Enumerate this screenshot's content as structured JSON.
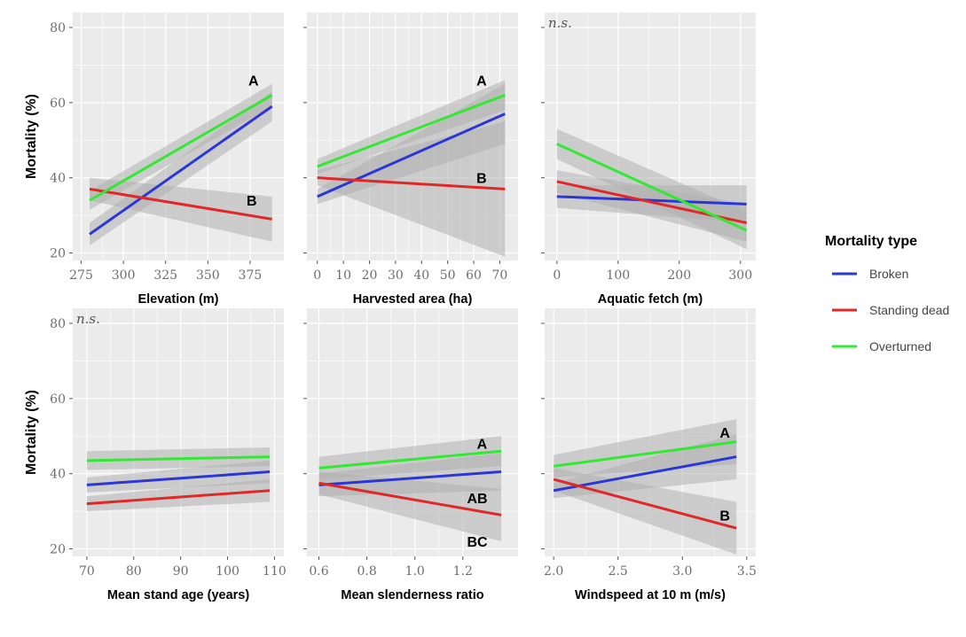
{
  "colors": {
    "panel_bg": "#ebebeb",
    "grid": "#ffffff",
    "ribbon": "#b0b0b0",
    "Broken": "#2a36d6",
    "Standing dead": "#e02828",
    "Overturned": "#33e833"
  },
  "legend": {
    "title": "Mortality type",
    "items": [
      "Broken",
      "Standing dead",
      "Overturned"
    ]
  },
  "chart_data": [
    {
      "type": "line",
      "xlabel": "Elevation (m)",
      "ylabel": "Mortality (%)",
      "xticks": [
        275,
        300,
        325,
        350,
        375
      ],
      "xlim": [
        270,
        395
      ],
      "yticks": [
        20,
        40,
        60,
        80
      ],
      "ytick_labels": [
        "20",
        "40",
        "60",
        "80"
      ],
      "ylim": [
        18,
        84
      ],
      "note": "",
      "series": [
        {
          "name": "Broken",
          "x": [
            280,
            388
          ],
          "y": [
            25,
            59
          ],
          "ci": [
            3,
            4
          ]
        },
        {
          "name": "Standing dead",
          "x": [
            280,
            388
          ],
          "y": [
            37,
            29
          ],
          "ci": [
            3,
            6
          ]
        },
        {
          "name": "Overturned",
          "x": [
            280,
            388
          ],
          "y": [
            34,
            62
          ],
          "ci": [
            2.5,
            3
          ]
        }
      ],
      "annotations": [
        {
          "text": "A",
          "x": 377,
          "y": 66
        },
        {
          "text": "B",
          "x": 376,
          "y": 34
        }
      ]
    },
    {
      "type": "line",
      "xlabel": "Harvested area (ha)",
      "ylabel": "",
      "xticks": [
        0,
        10,
        20,
        30,
        40,
        50,
        60,
        70
      ],
      "xlim": [
        -4,
        77
      ],
      "yticks": [
        20,
        40,
        60,
        80
      ],
      "ytick_labels": [
        "",
        "",
        "",
        ""
      ],
      "ylim": [
        18,
        84
      ],
      "note": "",
      "series": [
        {
          "name": "Broken",
          "x": [
            0,
            72
          ],
          "y": [
            35,
            57
          ],
          "ci": [
            2,
            8
          ]
        },
        {
          "name": "Standing dead",
          "x": [
            0,
            72
          ],
          "y": [
            40,
            37
          ],
          "ci": [
            2,
            18
          ]
        },
        {
          "name": "Overturned",
          "x": [
            0,
            72
          ],
          "y": [
            43,
            62
          ],
          "ci": [
            2,
            4
          ]
        }
      ],
      "annotations": [
        {
          "text": "A",
          "x": 63,
          "y": 66
        },
        {
          "text": "B",
          "x": 63,
          "y": 40
        }
      ]
    },
    {
      "type": "line",
      "xlabel": "Aquatic fetch (m)",
      "ylabel": "",
      "xticks": [
        0,
        100,
        200,
        300
      ],
      "xlim": [
        -20,
        325
      ],
      "yticks": [
        20,
        40,
        60,
        80
      ],
      "ytick_labels": [
        "",
        "",
        "",
        ""
      ],
      "ylim": [
        18,
        84
      ],
      "note": "n.s.",
      "series": [
        {
          "name": "Broken",
          "x": [
            0,
            310
          ],
          "y": [
            35,
            33
          ],
          "ci": [
            3,
            5
          ]
        },
        {
          "name": "Standing dead",
          "x": [
            0,
            310
          ],
          "y": [
            39,
            28
          ],
          "ci": [
            3,
            5
          ]
        },
        {
          "name": "Overturned",
          "x": [
            0,
            310
          ],
          "y": [
            49,
            26
          ],
          "ci": [
            4,
            5
          ]
        }
      ],
      "annotations": []
    },
    {
      "type": "line",
      "xlabel": "Mean stand age (years)",
      "ylabel": "Mortality  (%)",
      "xticks": [
        70,
        80,
        90,
        100,
        110
      ],
      "xlim": [
        67,
        112
      ],
      "yticks": [
        20,
        40,
        60,
        80
      ],
      "ytick_labels": [
        "20",
        "40",
        "60",
        "80"
      ],
      "ylim": [
        18,
        84
      ],
      "note": "n.s.",
      "series": [
        {
          "name": "Broken",
          "x": [
            70,
            109
          ],
          "y": [
            37,
            40.5
          ],
          "ci": [
            2,
            3
          ]
        },
        {
          "name": "Standing dead",
          "x": [
            70,
            109
          ],
          "y": [
            32,
            35.5
          ],
          "ci": [
            2,
            3
          ]
        },
        {
          "name": "Overturned",
          "x": [
            70,
            109
          ],
          "y": [
            43.5,
            44.5
          ],
          "ci": [
            2.5,
            2.5
          ]
        }
      ],
      "annotations": []
    },
    {
      "type": "line",
      "xlabel": "Mean slenderness ratio",
      "ylabel": "",
      "xticks": [
        0.6,
        0.8,
        1.0,
        1.2
      ],
      "xtick_labels": [
        "0.6",
        "0.8",
        "1.0",
        "1.2"
      ],
      "xlim": [
        0.55,
        1.43
      ],
      "yticks": [
        20,
        40,
        60,
        80
      ],
      "ytick_labels": [
        "",
        "",
        "",
        ""
      ],
      "ylim": [
        18,
        84
      ],
      "note": "",
      "series": [
        {
          "name": "Broken",
          "x": [
            0.6,
            1.36
          ],
          "y": [
            37,
            40.5
          ],
          "ci": [
            3,
            5
          ]
        },
        {
          "name": "Standing dead",
          "x": [
            0.6,
            1.36
          ],
          "y": [
            37.5,
            29
          ],
          "ci": [
            3,
            7
          ]
        },
        {
          "name": "Overturned",
          "x": [
            0.6,
            1.36
          ],
          "y": [
            41.5,
            46
          ],
          "ci": [
            3,
            4
          ]
        }
      ],
      "annotations": [
        {
          "text": "A",
          "x": 1.28,
          "y": 48
        },
        {
          "text": "AB",
          "x": 1.26,
          "y": 33.5
        },
        {
          "text": "BC",
          "x": 1.26,
          "y": 22
        }
      ]
    },
    {
      "type": "line",
      "xlabel": "Windspeed at 10 m (m/s)",
      "ylabel": "",
      "xticks": [
        2.0,
        2.5,
        3.0,
        3.5
      ],
      "xtick_labels": [
        "2.0",
        "2.5",
        "3.0",
        "3.5"
      ],
      "xlim": [
        1.93,
        3.57
      ],
      "yticks": [
        20,
        40,
        60,
        80
      ],
      "ytick_labels": [
        "",
        "",
        "",
        ""
      ],
      "ylim": [
        18,
        84
      ],
      "note": "",
      "series": [
        {
          "name": "Broken",
          "x": [
            2.0,
            3.42
          ],
          "y": [
            35.5,
            44.5
          ],
          "ci": [
            2,
            6
          ]
        },
        {
          "name": "Standing dead",
          "x": [
            2.0,
            3.42
          ],
          "y": [
            38.5,
            25.5
          ],
          "ci": [
            3,
            7
          ]
        },
        {
          "name": "Overturned",
          "x": [
            2.0,
            3.42
          ],
          "y": [
            42,
            48.5
          ],
          "ci": [
            3,
            6
          ]
        }
      ],
      "annotations": [
        {
          "text": "A",
          "x": 3.33,
          "y": 51
        },
        {
          "text": "B",
          "x": 3.33,
          "y": 29
        }
      ]
    }
  ]
}
